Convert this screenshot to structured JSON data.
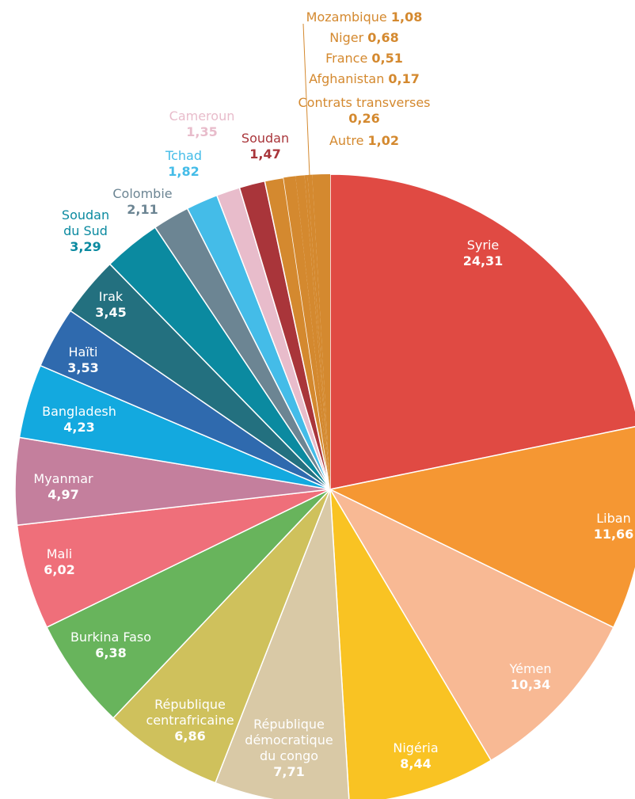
{
  "chart_data": {
    "type": "pie",
    "categories": [
      "Syrie",
      "Liban",
      "Yémen",
      "Nigéria",
      "République démocratique du congo",
      "République centrafricaine",
      "Burkina Faso",
      "Mali",
      "Myanmar",
      "Bangladesh",
      "Haïti",
      "Irak",
      "Soudan du Sud",
      "Colombie",
      "Tchad",
      "Cameroun",
      "Soudan",
      "Mozambique",
      "Niger",
      "France",
      "Afghanistan",
      "Contrats transverses",
      "Autre"
    ],
    "values": [
      24.31,
      11.66,
      10.34,
      8.44,
      7.71,
      6.86,
      6.38,
      6.02,
      4.97,
      4.23,
      3.53,
      3.45,
      3.29,
      2.11,
      1.82,
      1.35,
      1.47,
      1.08,
      0.68,
      0.51,
      0.17,
      0.26,
      1.02
    ],
    "value_labels": [
      "24,31",
      "11,66",
      "10,34",
      "8,44",
      "7,71",
      "6,86",
      "6,38",
      "6,02",
      "4,97",
      "4,23",
      "3,53",
      "3,45",
      "3,29",
      "2,11",
      "1,82",
      "1,35",
      "1,47",
      "1,08",
      "0,68",
      "0,51",
      "0,17",
      "0,26",
      "1,02"
    ],
    "colors": [
      "#e04a43",
      "#f59733",
      "#f8b994",
      "#f9c323",
      "#d9c9a6",
      "#cfc15c",
      "#68b45c",
      "#ef6f7a",
      "#c47f9d",
      "#13a9df",
      "#2f6aae",
      "#23707f",
      "#0b8aa0",
      "#6c8593",
      "#44bce8",
      "#e8bccb",
      "#a9353a",
      "#d4892f",
      "#d4892f",
      "#d4892f",
      "#d4892f",
      "#d4892f",
      "#d4892f"
    ]
  }
}
